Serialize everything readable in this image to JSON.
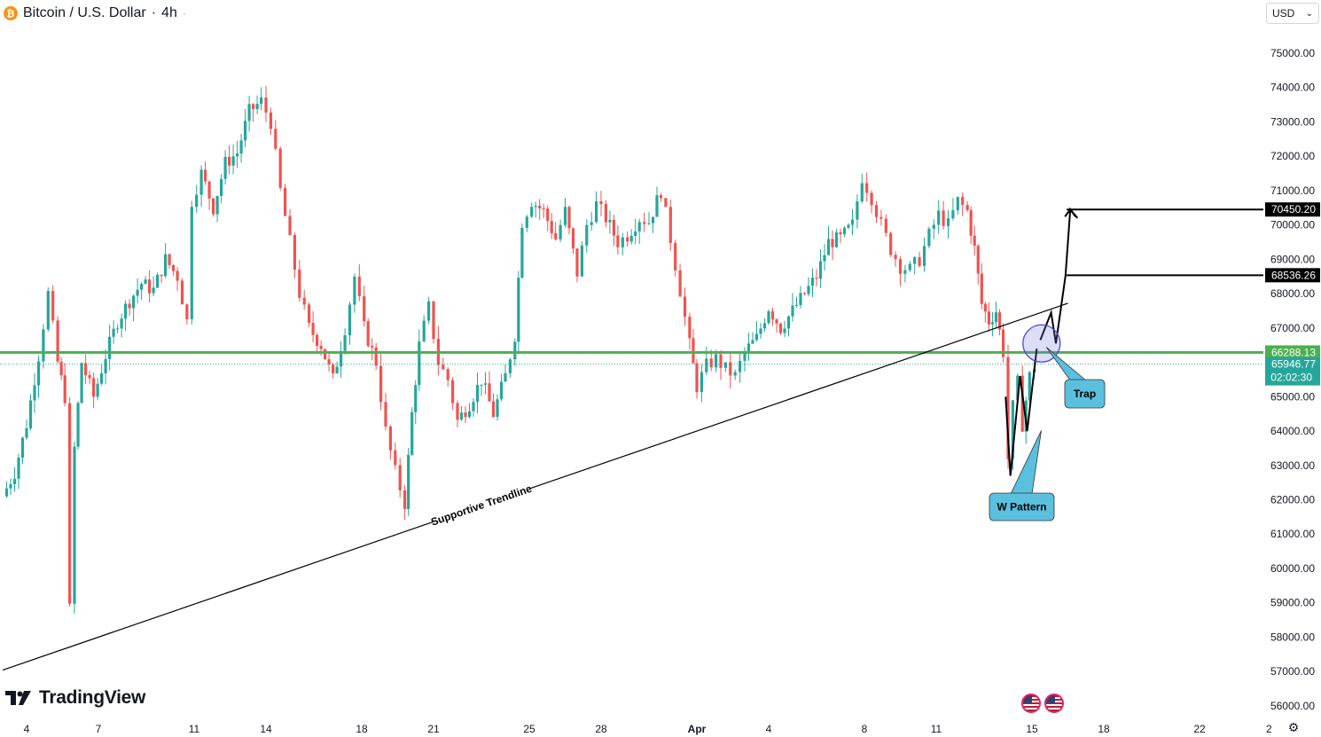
{
  "header": {
    "symbol_title": "Bitcoin / U.S. Dollar",
    "interval": "4h",
    "coin_icon": "bitcoin-icon",
    "separator": "·"
  },
  "currency_selector": {
    "value": "USD",
    "icon": "chevron-down-icon"
  },
  "brand": {
    "name": "TradingView"
  },
  "colors": {
    "up": "#26a69a",
    "down": "#ef5350",
    "support_line": "#4caf50",
    "callout": "#5bc0de",
    "text": "#131722"
  },
  "events": {
    "icons": [
      "us-flag-icon",
      "us-flag-icon"
    ]
  },
  "chart_data": {
    "type": "candlestick",
    "symbol": "Bitcoin / U.S. Dollar",
    "interval": "4h",
    "y_ticks": [
      75000,
      74000,
      73000,
      72000,
      71000,
      70000,
      69000,
      68000,
      67000,
      66000,
      65000,
      64000,
      63000,
      62000,
      61000,
      60000,
      59000,
      58000,
      57000,
      56000
    ],
    "y_tick_labels": [
      "75000.00",
      "74000.00",
      "73000.00",
      "72000.00",
      "71000.00",
      "70000.00",
      "69000.00",
      "68000.00",
      "67000.00",
      "65000.00",
      "64000.00",
      "63000.00",
      "62000.00",
      "61000.00",
      "60000.00",
      "59000.00",
      "58000.00",
      "57000.00",
      "56000.00"
    ],
    "x_tick_labels": [
      {
        "label": "4",
        "day": 4.0
      },
      {
        "label": "7",
        "day": 7.0
      },
      {
        "label": "11",
        "day": 11.0
      },
      {
        "label": "14",
        "day": 14.0
      },
      {
        "label": "18",
        "day": 18.0
      },
      {
        "label": "21",
        "day": 21.0
      },
      {
        "label": "25",
        "day": 25.0
      },
      {
        "label": "28",
        "day": 28.0
      },
      {
        "label": "Apr",
        "day": 32.0
      },
      {
        "label": "4",
        "day": 35.0
      },
      {
        "label": "8",
        "day": 39.0
      },
      {
        "label": "11",
        "day": 42.0
      },
      {
        "label": "15",
        "day": 46.0
      },
      {
        "label": "18",
        "day": 49.0
      },
      {
        "label": "22",
        "day": 53.0
      },
      {
        "label": "2",
        "day": 55.9
      }
    ],
    "x_unit": "day",
    "candles": [],
    "path_points": [
      [
        3.0,
        62100
      ],
      [
        3.5,
        62800
      ],
      [
        4.0,
        64200
      ],
      [
        4.5,
        66200
      ],
      [
        4.9,
        68000
      ],
      [
        5.3,
        66000
      ],
      [
        5.6,
        65000
      ],
      [
        5.8,
        58800
      ],
      [
        6.0,
        63500
      ],
      [
        6.3,
        66000
      ],
      [
        6.8,
        65000
      ],
      [
        7.3,
        66200
      ],
      [
        7.8,
        67200
      ],
      [
        8.3,
        67800
      ],
      [
        8.8,
        68300
      ],
      [
        9.3,
        68100
      ],
      [
        9.8,
        69000
      ],
      [
        10.3,
        68500
      ],
      [
        10.7,
        67200
      ],
      [
        10.9,
        70700
      ],
      [
        11.3,
        71500
      ],
      [
        11.8,
        70500
      ],
      [
        12.3,
        71800
      ],
      [
        12.8,
        72100
      ],
      [
        13.3,
        73300
      ],
      [
        13.8,
        73600
      ],
      [
        14.2,
        73000
      ],
      [
        14.6,
        71000
      ],
      [
        15.0,
        69500
      ],
      [
        15.4,
        68000
      ],
      [
        15.8,
        67000
      ],
      [
        16.3,
        66500
      ],
      [
        16.8,
        65500
      ],
      [
        17.3,
        67000
      ],
      [
        17.7,
        68500
      ],
      [
        18.1,
        67000
      ],
      [
        18.6,
        66000
      ],
      [
        19.0,
        64000
      ],
      [
        19.4,
        62800
      ],
      [
        19.8,
        61900
      ],
      [
        20.1,
        64500
      ],
      [
        20.4,
        66500
      ],
      [
        20.8,
        67600
      ],
      [
        21.2,
        66000
      ],
      [
        21.6,
        65500
      ],
      [
        22.0,
        64300
      ],
      [
        22.5,
        64800
      ],
      [
        23.0,
        65500
      ],
      [
        23.5,
        64500
      ],
      [
        24.0,
        65600
      ],
      [
        24.4,
        66800
      ],
      [
        24.7,
        70100
      ],
      [
        25.1,
        70700
      ],
      [
        25.6,
        70400
      ],
      [
        26.1,
        69600
      ],
      [
        26.5,
        70400
      ],
      [
        27.0,
        68600
      ],
      [
        27.4,
        70000
      ],
      [
        27.8,
        70600
      ],
      [
        28.2,
        70200
      ],
      [
        28.7,
        69500
      ],
      [
        29.1,
        69700
      ],
      [
        29.6,
        70200
      ],
      [
        30.0,
        70100
      ],
      [
        30.5,
        71000
      ],
      [
        30.9,
        69600
      ],
      [
        31.3,
        68100
      ],
      [
        31.7,
        66500
      ],
      [
        32.0,
        65300
      ],
      [
        32.4,
        65900
      ],
      [
        32.8,
        66100
      ],
      [
        33.2,
        65800
      ],
      [
        33.6,
        65600
      ],
      [
        34.0,
        66300
      ],
      [
        34.5,
        66700
      ],
      [
        35.0,
        67600
      ],
      [
        35.5,
        67000
      ],
      [
        36.0,
        67500
      ],
      [
        36.5,
        68000
      ],
      [
        37.0,
        68500
      ],
      [
        37.5,
        69500
      ],
      [
        38.0,
        69600
      ],
      [
        38.5,
        70000
      ],
      [
        38.9,
        71400
      ],
      [
        39.3,
        70800
      ],
      [
        39.7,
        70000
      ],
      [
        40.1,
        69300
      ],
      [
        40.5,
        68800
      ],
      [
        40.9,
        68700
      ],
      [
        41.3,
        69000
      ],
      [
        41.7,
        69700
      ],
      [
        42.1,
        70300
      ],
      [
        42.5,
        70000
      ],
      [
        42.9,
        70700
      ],
      [
        43.3,
        70400
      ],
      [
        43.6,
        69300
      ],
      [
        43.9,
        67700
      ],
      [
        44.2,
        67200
      ],
      [
        44.5,
        67500
      ],
      [
        44.8,
        66300
      ],
      [
        45.0,
        63200
      ],
      [
        45.2,
        64700
      ],
      [
        45.4,
        65400
      ],
      [
        45.6,
        64200
      ],
      [
        45.9,
        65600
      ],
      [
        46.1,
        65900
      ]
    ],
    "trendline": {
      "label": "Supportive Trendline",
      "from": {
        "day": 3.0,
        "price": 57040
      },
      "to": {
        "day": 47.5,
        "price": 67720
      }
    },
    "support_level": {
      "price": 66288.13,
      "label": "66288.13"
    },
    "current_price": {
      "price": 65946.77,
      "label": "65946.77",
      "countdown": "02:02:30"
    },
    "target_levels": [
      {
        "price": 70450.2,
        "label": "70450.20"
      },
      {
        "price": 68536.26,
        "label": "68536.26"
      }
    ],
    "projection_path": [
      [
        46.35,
        66650
      ],
      [
        46.8,
        67450
      ],
      [
        47.0,
        66550
      ],
      [
        47.4,
        68520
      ],
      [
        47.6,
        70450
      ],
      [
        47.9,
        70200
      ]
    ],
    "w_pattern": [
      [
        44.9,
        65000
      ],
      [
        45.1,
        62700
      ],
      [
        45.5,
        65600
      ],
      [
        45.8,
        64000
      ],
      [
        46.2,
        66400
      ]
    ],
    "annotations": [
      {
        "label": "W Pattern",
        "anchor": {
          "day": 45.5,
          "price": 63500
        }
      },
      {
        "label": "Trap",
        "anchor": {
          "day": 46.6,
          "price": 66700
        }
      }
    ],
    "trap_circle": {
      "day": 46.4,
      "price": 66550
    }
  }
}
